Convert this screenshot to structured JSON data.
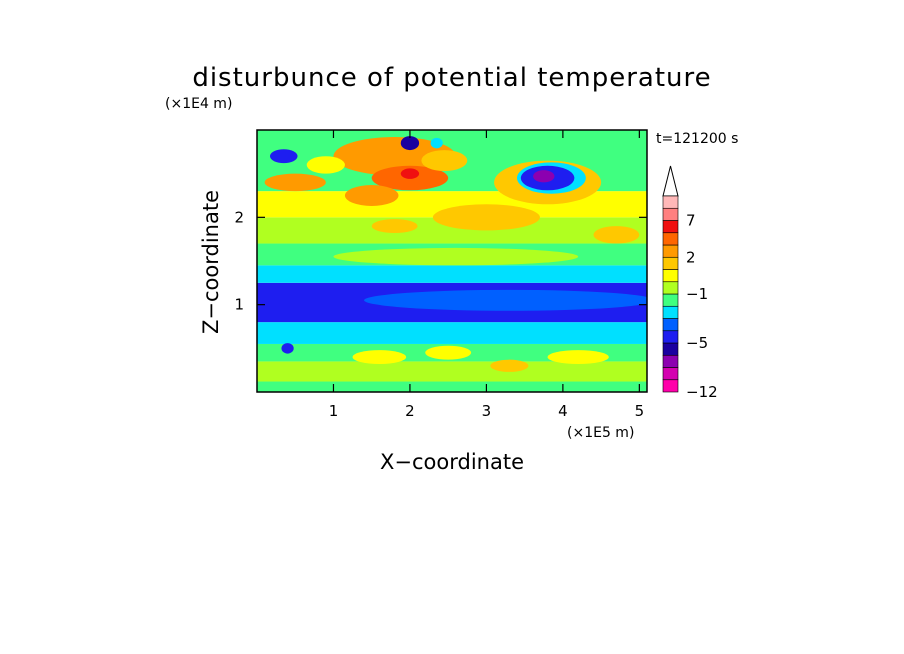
{
  "chart_data": {
    "type": "heatmap",
    "title": "disturbunce of potential temperature",
    "annotation": "t=121200 s",
    "xlabel": "X−coordinate",
    "ylabel": "Z−coordinate",
    "x_unit": "(×1E5 m)",
    "y_unit": "(×1E4 m)",
    "x_ticks": [
      "1",
      "2",
      "3",
      "4",
      "5"
    ],
    "x_tick_values": [
      1,
      2,
      3,
      4,
      5
    ],
    "y_ticks": [
      "1",
      "2"
    ],
    "y_tick_values": [
      1,
      2
    ],
    "xlim": [
      0,
      5.1
    ],
    "ylim": [
      0,
      3.0
    ],
    "grid": false,
    "legend_position": "right",
    "colorbar": {
      "labels": [
        "7",
        "2",
        "−1",
        "−5",
        "−12"
      ],
      "label_values": [
        7,
        2,
        -1,
        -5,
        -12
      ],
      "colors": [
        "#ff00aa",
        "#d400b0",
        "#8c00b0",
        "#1a00a0",
        "#1e1ef0",
        "#0060ff",
        "#00e0ff",
        "#40ff80",
        "#b0ff20",
        "#ffff00",
        "#ffc800",
        "#ff9a00",
        "#ff6600",
        "#f01010",
        "#ff8080",
        "#ffb8b8"
      ],
      "extend_top_color": "#ffffff"
    },
    "bands": [
      {
        "z": [
          0.0,
          0.12
        ],
        "color": "#40ff80"
      },
      {
        "z": [
          0.12,
          0.35
        ],
        "color": "#b0ff20"
      },
      {
        "z": [
          0.35,
          0.55
        ],
        "color": "#40ff80"
      },
      {
        "z": [
          0.55,
          0.8
        ],
        "color": "#00e0ff"
      },
      {
        "z": [
          0.8,
          1.25
        ],
        "color": "#1e1ef0"
      },
      {
        "z": [
          1.25,
          1.45
        ],
        "color": "#00e0ff"
      },
      {
        "z": [
          1.45,
          1.7
        ],
        "color": "#40ff80"
      },
      {
        "z": [
          1.7,
          2.0
        ],
        "color": "#b0ff20"
      },
      {
        "z": [
          2.0,
          2.3
        ],
        "color": "#ffff00"
      },
      {
        "z": [
          2.3,
          3.0
        ],
        "color": "#40ff80"
      }
    ],
    "features": [
      {
        "x": 1.8,
        "z": 2.7,
        "rx": 0.8,
        "rz": 0.22,
        "color": "#ff9a00"
      },
      {
        "x": 2.0,
        "z": 2.45,
        "rx": 0.5,
        "rz": 0.14,
        "color": "#ff6600"
      },
      {
        "x": 1.5,
        "z": 2.25,
        "rx": 0.35,
        "rz": 0.12,
        "color": "#ff9a00"
      },
      {
        "x": 2.0,
        "z": 2.5,
        "rx": 0.12,
        "rz": 0.06,
        "color": "#f01010"
      },
      {
        "x": 2.45,
        "z": 2.65,
        "rx": 0.3,
        "rz": 0.12,
        "color": "#ffc800"
      },
      {
        "x": 3.8,
        "z": 2.4,
        "rx": 0.7,
        "rz": 0.25,
        "color": "#ffc800"
      },
      {
        "x": 3.85,
        "z": 2.45,
        "rx": 0.45,
        "rz": 0.18,
        "color": "#00e0ff"
      },
      {
        "x": 3.8,
        "z": 2.45,
        "rx": 0.35,
        "rz": 0.14,
        "color": "#1e1ef0"
      },
      {
        "x": 3.75,
        "z": 2.47,
        "rx": 0.14,
        "rz": 0.07,
        "color": "#8c00b0"
      },
      {
        "x": 0.35,
        "z": 2.7,
        "rx": 0.18,
        "rz": 0.08,
        "color": "#1e1ef0"
      },
      {
        "x": 2.0,
        "z": 2.85,
        "rx": 0.12,
        "rz": 0.08,
        "color": "#1a00a0"
      },
      {
        "x": 2.35,
        "z": 2.85,
        "rx": 0.08,
        "rz": 0.06,
        "color": "#00e0ff"
      },
      {
        "x": 0.5,
        "z": 2.4,
        "rx": 0.4,
        "rz": 0.1,
        "color": "#ff9a00"
      },
      {
        "x": 0.9,
        "z": 2.6,
        "rx": 0.25,
        "rz": 0.1,
        "color": "#ffff00"
      },
      {
        "x": 3.0,
        "z": 2.0,
        "rx": 0.7,
        "rz": 0.15,
        "color": "#ffc800"
      },
      {
        "x": 1.8,
        "z": 1.9,
        "rx": 0.3,
        "rz": 0.08,
        "color": "#ffc800"
      },
      {
        "x": 4.7,
        "z": 1.8,
        "rx": 0.3,
        "rz": 0.1,
        "color": "#ffc800"
      },
      {
        "x": 2.6,
        "z": 1.55,
        "rx": 1.6,
        "rz": 0.1,
        "color": "#b0ff20"
      },
      {
        "x": 3.3,
        "z": 1.05,
        "rx": 1.9,
        "rz": 0.12,
        "color": "#0060ff"
      },
      {
        "x": 1.6,
        "z": 0.4,
        "rx": 0.35,
        "rz": 0.08,
        "color": "#ffff00"
      },
      {
        "x": 2.5,
        "z": 0.45,
        "rx": 0.3,
        "rz": 0.08,
        "color": "#ffff00"
      },
      {
        "x": 4.2,
        "z": 0.4,
        "rx": 0.4,
        "rz": 0.08,
        "color": "#ffff00"
      },
      {
        "x": 3.3,
        "z": 0.3,
        "rx": 0.25,
        "rz": 0.07,
        "color": "#ffc800"
      },
      {
        "x": 0.4,
        "z": 0.5,
        "rx": 0.08,
        "rz": 0.06,
        "color": "#1e1ef0"
      }
    ]
  }
}
